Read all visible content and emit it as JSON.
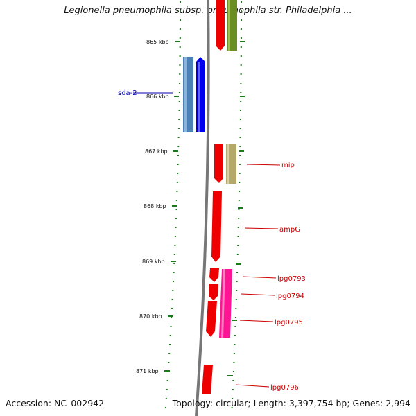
{
  "title": "Legionella pneumophila subsp. pneumophila str. Philadelphia ...",
  "footer": {
    "accession": "Accession: NC_002942",
    "summary": "Topology: circular; Length: 3,397,754 bp; Genes: 2,994"
  },
  "colors": {
    "backbone": "#777777",
    "tick": "#1a7a1a",
    "forward_gene": "#ee0000",
    "label_red": "#cc0000",
    "label_blue": "#0000aa",
    "olive": "#6b8e23",
    "khaki": "#b5a96a",
    "steelblue": "#4a82b8",
    "blue": "#0000ee",
    "magenta": "#ff1493"
  },
  "map": {
    "tick_labels": [
      "865 kbp",
      "866 kbp",
      "867 kbp",
      "868 kbp",
      "869 kbp",
      "870 kbp",
      "871 kbp"
    ],
    "gene_labels": [
      {
        "id": "sda2",
        "text": "sda-2",
        "color": "blue"
      },
      {
        "id": "mip",
        "text": "mip",
        "color": "red"
      },
      {
        "id": "ampG",
        "text": "ampG",
        "color": "red"
      },
      {
        "id": "lpg0793",
        "text": "lpg0793",
        "color": "red"
      },
      {
        "id": "lpg0794",
        "text": "lpg0794",
        "color": "red"
      },
      {
        "id": "lpg0795",
        "text": "lpg0795",
        "color": "red"
      },
      {
        "id": "lpg0796",
        "text": "lpg0796",
        "color": "red"
      }
    ]
  }
}
